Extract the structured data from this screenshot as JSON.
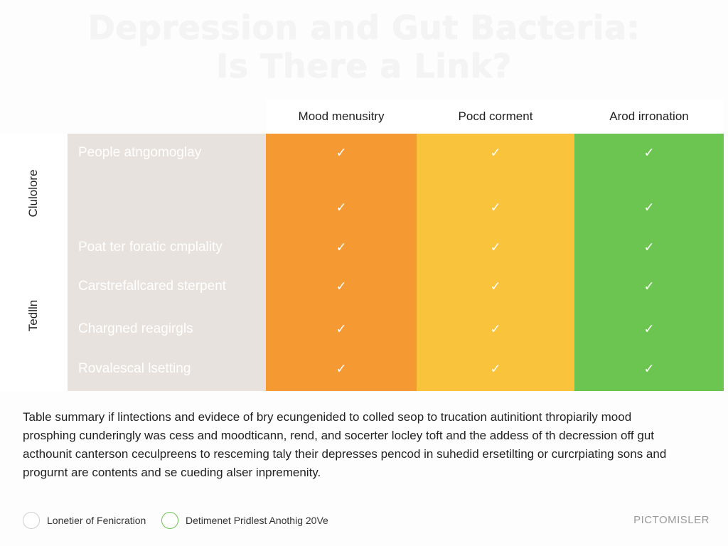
{
  "title": {
    "line1": "Depression and Gut Bacteria:",
    "line2": "Is There a Link?"
  },
  "table": {
    "columns": [
      "Mood menusitry",
      "Pocd corment",
      "Arod irronation"
    ],
    "column_colors": [
      "#f59a33",
      "#f9c33b",
      "#6cc551"
    ],
    "side_labels": [
      "Clulolore",
      "Tedlln"
    ],
    "rows": [
      {
        "label": "People atngomoglay",
        "checks": [
          "✓",
          "✓",
          "✓"
        ]
      },
      {
        "label": "",
        "checks": [
          "✓",
          "✓",
          "✓"
        ]
      },
      {
        "label": "Poat ter foratic cmplality",
        "checks": [
          "✓",
          "✓",
          "✓"
        ]
      },
      {
        "label": "Carstrefallcared sterpent",
        "checks": [
          "✓",
          "✓",
          "✓"
        ]
      },
      {
        "label": "Chargned reagirgls",
        "checks": [
          "✓",
          "✓",
          "✓"
        ]
      },
      {
        "label": "Rovalescal lsetting",
        "checks": [
          "✓",
          "✓",
          "✓"
        ]
      }
    ]
  },
  "summary": {
    "lines": [
      "Table summary if lintections and evidece of bry ecungenided to colled seop to trucation autinitiont thropiarily mood",
      "prosphing cunderingly was cess and moodticann, rend, and socerter locley toft and the addess of th decression off gut",
      "acthounit canterson ceculpreens to resceming taly their depresses pencod in suhedid ersetilting or curcrpiating sons and",
      "progurnt are contents and se cueding alser inpremenity."
    ]
  },
  "legend": {
    "items": [
      {
        "label": "Lonetier of Fenicration"
      },
      {
        "label": "Detimenet Pridlest Anothig 20Ve"
      }
    ]
  },
  "brand": "PICTOMISLER"
}
